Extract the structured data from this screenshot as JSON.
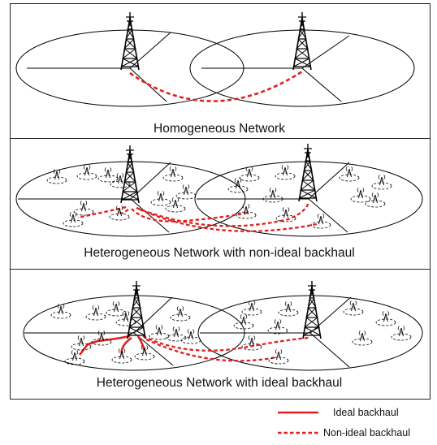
{
  "panels": [
    {
      "caption": "Homogeneous Network"
    },
    {
      "caption": "Heterogeneous Network with non-ideal backhaul"
    },
    {
      "caption": "Heterogeneous Network with ideal backhaul"
    }
  ],
  "legend": {
    "ideal_label": "Ideal backhaul",
    "non_ideal_label": "Non-ideal backhaul"
  },
  "colors": {
    "backhaul": "#e31e1e",
    "line": "#000000",
    "background": "#ffffff"
  },
  "icons": [
    "macro-tower-icon",
    "small-cell-icon",
    "coverage-ellipse"
  ]
}
